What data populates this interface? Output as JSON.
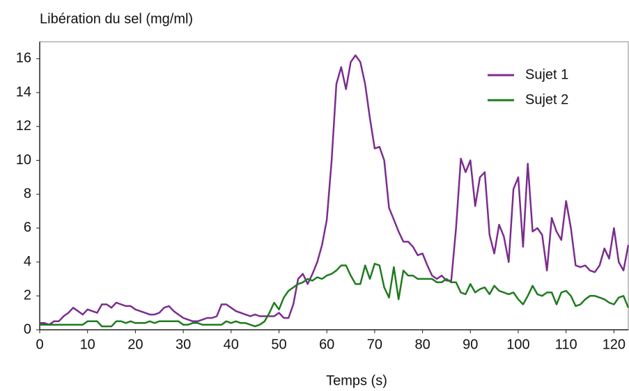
{
  "chart_data": {
    "type": "line",
    "y_label": "Libération du sel (mg/ml)",
    "x_label": "Temps (s)",
    "x": [
      0,
      1,
      2,
      3,
      4,
      5,
      6,
      7,
      8,
      9,
      10,
      11,
      12,
      13,
      14,
      15,
      16,
      17,
      18,
      19,
      20,
      21,
      22,
      23,
      24,
      25,
      26,
      27,
      28,
      29,
      30,
      31,
      32,
      33,
      34,
      35,
      36,
      37,
      38,
      39,
      40,
      41,
      42,
      43,
      44,
      45,
      46,
      47,
      48,
      49,
      50,
      51,
      52,
      53,
      54,
      55,
      56,
      57,
      58,
      59,
      60,
      61,
      62,
      63,
      64,
      65,
      66,
      67,
      68,
      69,
      70,
      71,
      72,
      73,
      74,
      75,
      76,
      77,
      78,
      79,
      80,
      81,
      82,
      83,
      84,
      85,
      86,
      87,
      88,
      89,
      90,
      91,
      92,
      93,
      94,
      95,
      96,
      97,
      98,
      99,
      100,
      101,
      102,
      103,
      104,
      105,
      106,
      107,
      108,
      109,
      110,
      111,
      112,
      113,
      114,
      115,
      116,
      117,
      118,
      119,
      120,
      121,
      122,
      123
    ],
    "series": [
      {
        "name": "Sujet 1",
        "color": "#7b2d8e",
        "values": [
          0.4,
          0.4,
          0.3,
          0.5,
          0.5,
          0.8,
          1.0,
          1.3,
          1.1,
          0.9,
          1.2,
          1.1,
          1.0,
          1.5,
          1.5,
          1.3,
          1.6,
          1.5,
          1.4,
          1.4,
          1.2,
          1.1,
          1.0,
          0.9,
          0.9,
          1.0,
          1.3,
          1.4,
          1.1,
          0.9,
          0.7,
          0.6,
          0.5,
          0.5,
          0.6,
          0.7,
          0.7,
          0.8,
          1.5,
          1.5,
          1.3,
          1.1,
          1.0,
          0.9,
          0.8,
          0.9,
          0.8,
          0.8,
          0.8,
          0.8,
          1.0,
          0.7,
          0.7,
          1.5,
          3.0,
          3.3,
          2.7,
          3.3,
          4.0,
          5.0,
          6.5,
          10.0,
          14.5,
          15.5,
          14.2,
          15.8,
          16.2,
          15.8,
          14.5,
          12.5,
          10.7,
          10.8,
          10.0,
          7.2,
          6.5,
          5.8,
          5.2,
          5.2,
          4.9,
          4.4,
          4.5,
          3.8,
          3.2,
          3.0,
          3.2,
          2.9,
          2.9,
          6.0,
          10.1,
          9.3,
          10.0,
          7.3,
          9.0,
          9.3,
          5.6,
          4.5,
          6.2,
          5.5,
          4.0,
          8.3,
          9.0,
          4.9,
          9.8,
          5.8,
          6.0,
          5.6,
          3.5,
          6.6,
          5.8,
          5.3,
          7.6,
          6.0,
          3.8,
          3.7,
          3.8,
          3.5,
          3.4,
          3.8,
          4.8,
          4.2,
          6.0,
          4.0,
          3.5,
          5.0
        ]
      },
      {
        "name": "Sujet 2",
        "color": "#1e7b1e",
        "values": [
          0.3,
          0.3,
          0.3,
          0.3,
          0.3,
          0.3,
          0.3,
          0.3,
          0.3,
          0.3,
          0.5,
          0.5,
          0.5,
          0.2,
          0.2,
          0.2,
          0.5,
          0.5,
          0.4,
          0.5,
          0.4,
          0.4,
          0.4,
          0.5,
          0.4,
          0.5,
          0.5,
          0.5,
          0.5,
          0.5,
          0.3,
          0.3,
          0.4,
          0.4,
          0.3,
          0.3,
          0.3,
          0.3,
          0.3,
          0.5,
          0.4,
          0.5,
          0.4,
          0.4,
          0.3,
          0.2,
          0.3,
          0.5,
          1.0,
          1.6,
          1.2,
          1.9,
          2.3,
          2.5,
          2.7,
          2.8,
          3.0,
          2.9,
          3.1,
          3.0,
          3.2,
          3.3,
          3.5,
          3.8,
          3.8,
          3.2,
          2.7,
          2.7,
          3.8,
          3.0,
          3.9,
          3.8,
          2.5,
          1.9,
          3.7,
          1.8,
          3.5,
          3.2,
          3.2,
          3.0,
          3.0,
          3.0,
          3.0,
          2.8,
          2.8,
          3.0,
          2.8,
          2.8,
          2.2,
          2.1,
          2.7,
          2.2,
          2.4,
          2.5,
          2.1,
          2.6,
          2.3,
          2.2,
          2.1,
          2.2,
          1.8,
          1.5,
          2.0,
          2.6,
          2.1,
          2.0,
          2.2,
          2.2,
          1.5,
          2.2,
          2.3,
          2.0,
          1.4,
          1.5,
          1.8,
          2.0,
          2.0,
          1.9,
          1.8,
          1.6,
          1.5,
          1.9,
          2.0,
          1.3
        ]
      }
    ],
    "xlim": [
      0,
      123
    ],
    "xticks": [
      0,
      10,
      20,
      30,
      40,
      50,
      60,
      70,
      80,
      90,
      100,
      110,
      120
    ],
    "ylim": [
      0,
      17
    ],
    "yticks": [
      0,
      2,
      4,
      6,
      8,
      10,
      12,
      14,
      16
    ],
    "legend": "upper right"
  }
}
